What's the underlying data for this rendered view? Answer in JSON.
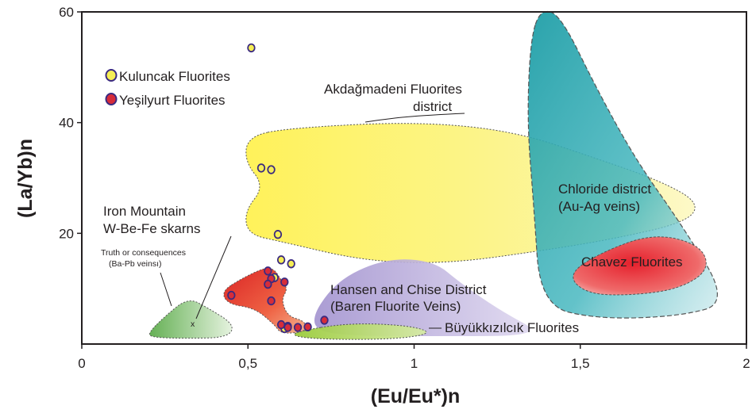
{
  "chart_data": {
    "type": "scatter",
    "xlabel": "(Eu/Eu*)n",
    "ylabel": "(La/Yb)n",
    "xlim": [
      0,
      2
    ],
    "ylim": [
      0,
      60
    ],
    "x_ticks": [
      "0",
      "0,5",
      "1",
      "1,5",
      "2"
    ],
    "y_ticks": [
      "20",
      "40",
      "60"
    ],
    "x_tick_values": [
      0,
      0.5,
      1,
      1.5,
      2
    ],
    "y_tick_values": [
      20,
      40,
      60
    ],
    "grid": false,
    "legend_position": "top-left",
    "series": [
      {
        "name": "Kuluncak Fluorites",
        "color": "#f5ee55",
        "points": [
          {
            "x": 0.51,
            "y": 53.5
          },
          {
            "x": 0.54,
            "y": 31.8
          },
          {
            "x": 0.57,
            "y": 31.5
          },
          {
            "x": 0.59,
            "y": 19.8
          },
          {
            "x": 0.6,
            "y": 15.2
          },
          {
            "x": 0.63,
            "y": 14.5
          },
          {
            "x": 0.58,
            "y": 12.0
          },
          {
            "x": 0.61,
            "y": 2.8
          },
          {
            "x": 0.62,
            "y": 3.2
          }
        ]
      },
      {
        "name": "Yeşilyurt Fluorites",
        "color": "#d62c3a",
        "points": [
          {
            "x": 0.45,
            "y": 8.8
          },
          {
            "x": 0.56,
            "y": 13.2
          },
          {
            "x": 0.57,
            "y": 11.8
          },
          {
            "x": 0.56,
            "y": 10.8
          },
          {
            "x": 0.61,
            "y": 11.2
          },
          {
            "x": 0.57,
            "y": 7.8
          },
          {
            "x": 0.6,
            "y": 3.5
          },
          {
            "x": 0.62,
            "y": 3.0
          },
          {
            "x": 0.65,
            "y": 3.0
          },
          {
            "x": 0.68,
            "y": 3.1
          },
          {
            "x": 0.73,
            "y": 4.3
          }
        ]
      }
    ],
    "annotations": {
      "akdagmadeni": [
        "Akdağmadeni Fluorites",
        "district"
      ],
      "chloride": [
        "Chloride district",
        "(Au-Ag veins)"
      ],
      "chavez": "Chavez Fluorites",
      "hansen": [
        "Hansen and Chise District",
        "(Baren Fluorite Veins)"
      ],
      "buyukkizilcik": "Büyükkızılcık Fluorites",
      "iron_mountain": [
        "Iron Mountain",
        "W-Be-Fe skarns"
      ],
      "truth": [
        "Truth or consequences",
        "(Ba-Pb veinsı)"
      ],
      "marker": "x"
    },
    "region_colors": {
      "akdagmadeni": "#fbf58a",
      "chloride": "#2aa7b0",
      "chavez": "#e8303a",
      "hansen": "#b7a8d8",
      "buyukkizilcik": "#8cbf2f",
      "truth": "#5fae4a",
      "yesilyurt_field": "#e02a22"
    }
  }
}
